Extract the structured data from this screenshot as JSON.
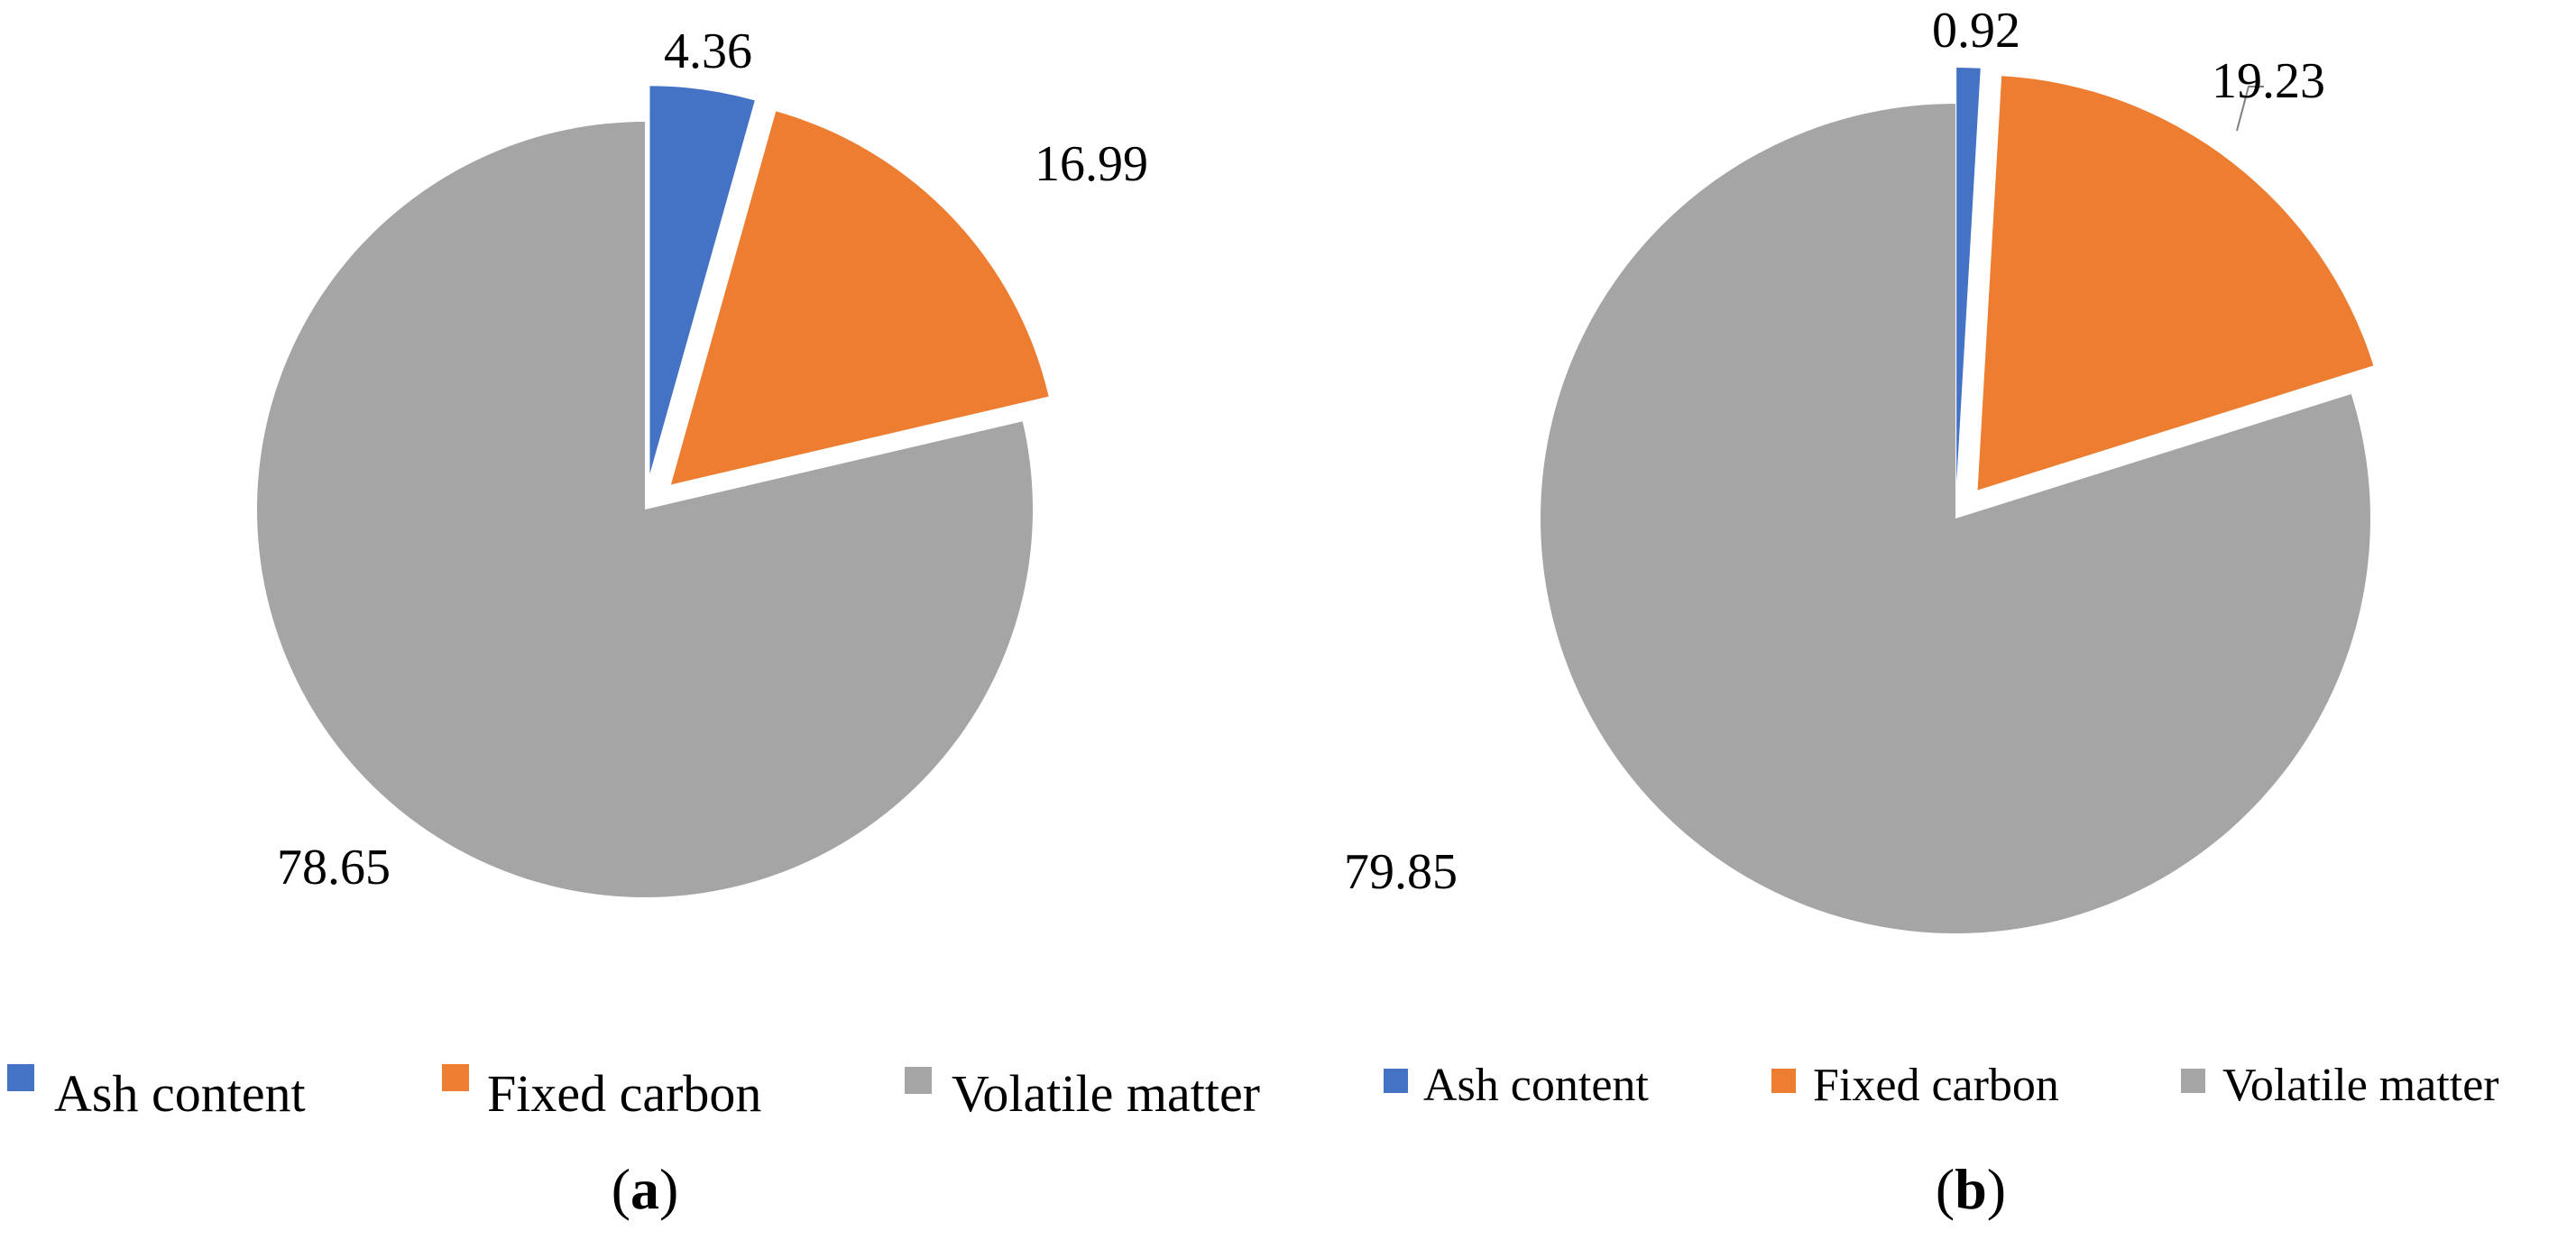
{
  "chart_data": [
    {
      "type": "pie",
      "panel_label": "a",
      "categories": [
        "Ash content",
        "Fixed carbon",
        "Volatile matter"
      ],
      "values": [
        4.36,
        16.99,
        78.65
      ],
      "value_labels": [
        "4.36",
        "16.99",
        "78.65"
      ],
      "colors": [
        "#4472C4",
        "#ED7D31",
        "#A5A5A5"
      ],
      "exploded": [
        true,
        true,
        false
      ],
      "legend": {
        "position": "bottom",
        "entries": [
          "Ash content",
          "Fixed carbon",
          "Volatile matter"
        ]
      }
    },
    {
      "type": "pie",
      "panel_label": "b",
      "categories": [
        "Ash content",
        "Fixed carbon",
        "Volatile matter"
      ],
      "values": [
        0.92,
        19.23,
        79.85
      ],
      "value_labels": [
        "0.92",
        "19.23",
        "79.85"
      ],
      "colors": [
        "#4472C4",
        "#ED7D31",
        "#A5A5A5"
      ],
      "exploded": [
        true,
        true,
        false
      ],
      "legend": {
        "position": "bottom",
        "entries": [
          "Ash content",
          "Fixed carbon",
          "Volatile matter"
        ]
      }
    }
  ]
}
